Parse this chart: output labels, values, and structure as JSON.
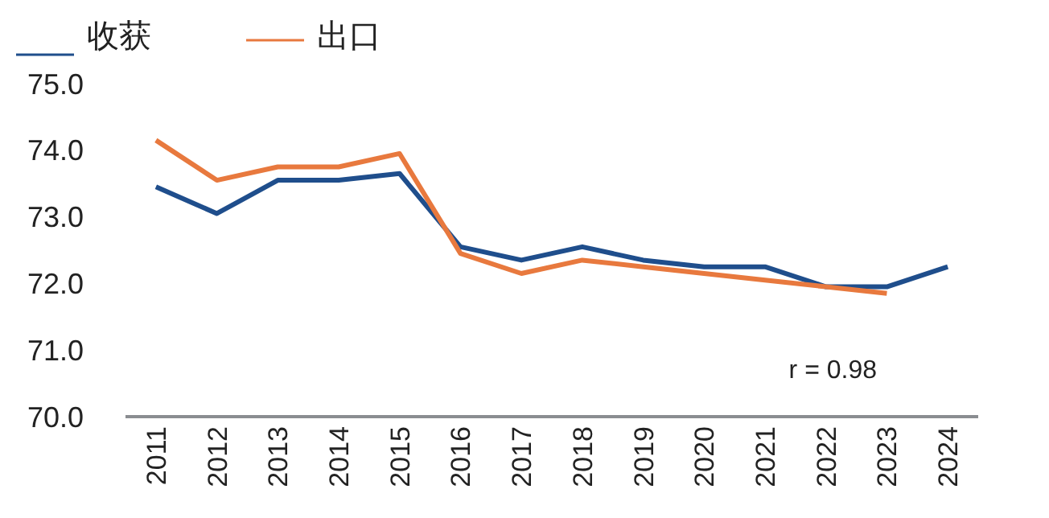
{
  "chart_data": {
    "type": "line",
    "categories": [
      "2011",
      "2012",
      "2013",
      "2014",
      "2015",
      "2016",
      "2017",
      "2018",
      "2019",
      "2020",
      "2021",
      "2022",
      "2023",
      "2024"
    ],
    "series": [
      {
        "name": "收获",
        "color": "#1f4e8c",
        "values": [
          73.45,
          73.05,
          73.55,
          73.55,
          73.65,
          72.55,
          72.35,
          72.55,
          72.35,
          72.25,
          72.25,
          71.95,
          71.95,
          72.25
        ]
      },
      {
        "name": "出口",
        "color": "#e8793e",
        "values": [
          74.15,
          73.55,
          73.75,
          73.75,
          73.95,
          72.45,
          72.15,
          72.35,
          72.25,
          72.15,
          72.05,
          71.95,
          71.85,
          null
        ]
      }
    ],
    "ylim": [
      70,
      75
    ],
    "yticks": [
      {
        "value": 70,
        "label": "70.0"
      },
      {
        "value": 71,
        "label": "71.0"
      },
      {
        "value": 72,
        "label": "72.0"
      },
      {
        "value": 73,
        "label": "73.0"
      },
      {
        "value": 74,
        "label": "74.0"
      },
      {
        "value": 75,
        "label": "75.0"
      }
    ],
    "grid": false,
    "legend": "top left",
    "marker": "none",
    "line_style": "solid",
    "annotations": [
      "r = 0.98"
    ]
  }
}
